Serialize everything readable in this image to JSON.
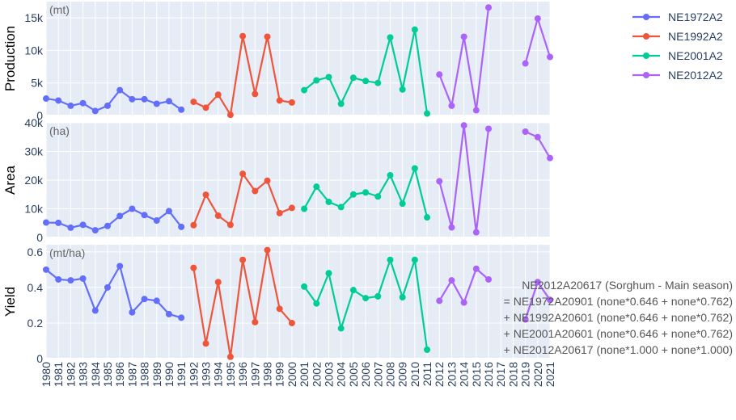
{
  "chart_data": {
    "type": "line",
    "x_categories": [
      "1980",
      "1981",
      "1982",
      "1983",
      "1984",
      "1985",
      "1986",
      "1987",
      "1988",
      "1989",
      "1990",
      "1991",
      "1992",
      "1993",
      "1994",
      "1995",
      "1996",
      "1997",
      "1998",
      "1999",
      "2000",
      "2001",
      "2002",
      "2003",
      "2004",
      "2005",
      "2006",
      "2007",
      "2008",
      "2009",
      "2010",
      "2011",
      "2012",
      "2013",
      "2014",
      "2015",
      "2016",
      "2017",
      "2018",
      "2019",
      "2020",
      "2021"
    ],
    "panels": [
      {
        "ylabel": "Production",
        "unit": "(mt)",
        "ylim": [
          0,
          17500
        ],
        "ticks": [
          0,
          5000,
          10000,
          15000
        ],
        "tick_labels": [
          "0",
          "5k",
          "10k",
          "15k"
        ],
        "series": [
          {
            "name": "NE1972A2",
            "x": [
              "1980",
              "1981",
              "1982",
              "1983",
              "1984",
              "1985",
              "1986",
              "1987",
              "1988",
              "1989",
              "1990",
              "1991"
            ],
            "values": [
              2600,
              2300,
              1500,
              1900,
              700,
              1500,
              3900,
              2500,
              2500,
              1800,
              2200,
              900
            ]
          },
          {
            "name": "NE1992A2",
            "x": [
              "1992",
              "1993",
              "1994",
              "1995",
              "1996",
              "1997",
              "1998",
              "1999",
              "2000"
            ],
            "values": [
              2100,
              1200,
              3200,
              100,
              12200,
              3300,
              12100,
              2300,
              2000
            ]
          },
          {
            "name": "NE2001A2",
            "x": [
              "2001",
              "2002",
              "2003",
              "2004",
              "2005",
              "2006",
              "2007",
              "2008",
              "2009",
              "2010",
              "2011"
            ],
            "values": [
              3900,
              5400,
              5900,
              1800,
              5800,
              5300,
              5000,
              12000,
              4000,
              13200,
              300
            ]
          },
          {
            "name": "NE2012A2",
            "x": [
              "2012",
              "2013",
              "2014",
              "2015",
              "2016"
            ],
            "values": [
              6300,
              1500,
              12100,
              800,
              16600
            ]
          },
          {
            "name": "NE2012A2",
            "x": [
              "2019",
              "2020",
              "2021"
            ],
            "values": [
              8000,
              14900,
              9000
            ]
          }
        ]
      },
      {
        "ylabel": "Area",
        "unit": "(ha)",
        "ylim": [
          0,
          40000
        ],
        "ticks": [
          0,
          10000,
          20000,
          30000,
          40000
        ],
        "tick_labels": [
          "0",
          "10k",
          "20k",
          "30k",
          "40k"
        ],
        "series": [
          {
            "name": "NE1972A2",
            "x": [
              "1980",
              "1981",
              "1982",
              "1983",
              "1984",
              "1985",
              "1986",
              "1987",
              "1988",
              "1989",
              "1990",
              "1991"
            ],
            "values": [
              5200,
              5100,
              3400,
              4400,
              2500,
              4000,
              7500,
              10000,
              7800,
              5900,
              9200,
              3700
            ]
          },
          {
            "name": "NE1992A2",
            "x": [
              "1992",
              "1993",
              "1994",
              "1995",
              "1996",
              "1997",
              "1998",
              "1999",
              "2000"
            ],
            "values": [
              4300,
              14900,
              7600,
              4400,
              22200,
              16200,
              19800,
              8500,
              10300
            ]
          },
          {
            "name": "NE2001A2",
            "x": [
              "2001",
              "2002",
              "2003",
              "2004",
              "2005",
              "2006",
              "2007",
              "2008",
              "2009",
              "2010",
              "2011"
            ],
            "values": [
              10000,
              17700,
              12400,
              10600,
              15000,
              15700,
              14300,
              21700,
              11800,
              24100,
              7000
            ]
          },
          {
            "name": "NE2012A2",
            "x": [
              "2012",
              "2013",
              "2014",
              "2015",
              "2016"
            ],
            "values": [
              19600,
              3500,
              39100,
              1800,
              37900
            ]
          },
          {
            "name": "NE2012A2",
            "x": [
              "2019",
              "2020",
              "2021"
            ],
            "values": [
              36900,
              35000,
              27700
            ]
          }
        ]
      },
      {
        "ylabel": "Yield",
        "unit": "(mt/ha)",
        "ylim": [
          0,
          0.64
        ],
        "ticks": [
          0,
          0.2,
          0.4,
          0.6
        ],
        "tick_labels": [
          "0",
          "0.2",
          "0.4",
          "0.6"
        ],
        "series": [
          {
            "name": "NE1972A2",
            "x": [
              "1980",
              "1981",
              "1982",
              "1983",
              "1984",
              "1985",
              "1986",
              "1987",
              "1988",
              "1989",
              "1990",
              "1991"
            ],
            "values": [
              0.5,
              0.445,
              0.44,
              0.45,
              0.27,
              0.4,
              0.52,
              0.26,
              0.335,
              0.325,
              0.25,
              0.23
            ]
          },
          {
            "name": "NE1992A2",
            "x": [
              "1992",
              "1993",
              "1994",
              "1995",
              "1996",
              "1997",
              "1998",
              "1999",
              "2000"
            ],
            "values": [
              0.51,
              0.085,
              0.43,
              0.01,
              0.555,
              0.205,
              0.61,
              0.28,
              0.2
            ]
          },
          {
            "name": "NE2001A2",
            "x": [
              "2001",
              "2002",
              "2003",
              "2004",
              "2005",
              "2006",
              "2007",
              "2008",
              "2009",
              "2010",
              "2011"
            ],
            "values": [
              0.405,
              0.31,
              0.48,
              0.17,
              0.385,
              0.34,
              0.35,
              0.555,
              0.345,
              0.555,
              0.05
            ]
          },
          {
            "name": "NE2012A2",
            "x": [
              "2012",
              "2013",
              "2014",
              "2015",
              "2016"
            ],
            "values": [
              0.325,
              0.44,
              0.315,
              0.505,
              0.445
            ]
          },
          {
            "name": "NE2012A2",
            "x": [
              "2019",
              "2020",
              "2021"
            ],
            "values": [
              0.22,
              0.43,
              0.33
            ]
          }
        ]
      }
    ],
    "legend": [
      {
        "name": "NE1972A2",
        "color": "#636efa"
      },
      {
        "name": "NE1992A2",
        "color": "#ef553b"
      },
      {
        "name": "NE2001A2",
        "color": "#00cc96"
      },
      {
        "name": "NE2012A2",
        "color": "#ab63fa"
      }
    ],
    "legend_position": "top-right",
    "grid": true,
    "annotation": [
      "NE2012A20617 (Sorghum - Main season)",
      "= NE1972A20901 (none*0.646 + none*0.762)",
      "+ NE1992A20601 (none*0.646 + none*0.762)",
      "+ NE2001A20601 (none*0.646 + none*0.762)",
      "+ NE2012A20617 (none*1.000 + none*1.000)"
    ]
  }
}
